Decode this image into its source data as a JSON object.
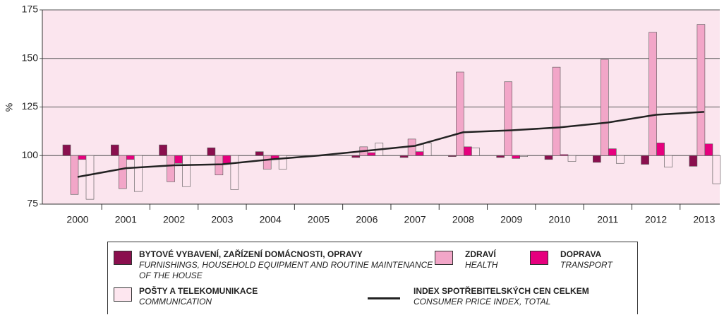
{
  "chart_data": {
    "type": "bar",
    "y_label": "%",
    "categories": [
      "2000",
      "2001",
      "2002",
      "2003",
      "2004",
      "2005",
      "2006",
      "2007",
      "2008",
      "2009",
      "2010",
      "2011",
      "2012",
      "2013"
    ],
    "ylim": [
      75,
      175
    ],
    "yticks": [
      75,
      100,
      125,
      150,
      175
    ],
    "baseline": 100,
    "grid": true,
    "series": [
      {
        "name": "BYTOVÉ VYBAVENÍ, ZAŘÍZENÍ DOMÁCNOSTI, OPRAVY",
        "name_en": "FURNISHINGS, HOUSEHOLD EQUIPMENT AND ROUTINE MAINTENANCE OF THE HOUSE",
        "type": "bar",
        "color": "#8a0f4e",
        "values": [
          105.5,
          105.5,
          105.5,
          104,
          102,
          100,
          99,
          99,
          99.5,
          99,
          98,
          96.5,
          95.5,
          94.5
        ]
      },
      {
        "name": "ZDRAVÍ",
        "name_en": "HEALTH",
        "type": "bar",
        "color": "#f2a6c8",
        "values": [
          80,
          83,
          86.5,
          90,
          93,
          100,
          104.5,
          108.5,
          143,
          138,
          145.5,
          149.5,
          163.5,
          167.5
        ]
      },
      {
        "name": "DOPRAVA",
        "name_en": "TRANSPORT",
        "type": "bar",
        "color": "#e6007e",
        "values": [
          98,
          98,
          96,
          96,
          98,
          100,
          101.5,
          102,
          104.5,
          98.5,
          100.5,
          103.5,
          106.5,
          106
        ]
      },
      {
        "name": "POŠTY A TELEKOMUNIKACE",
        "name_en": "COMMUNICATION",
        "type": "bar",
        "color": "#fde6ef",
        "values": [
          77.5,
          81.5,
          84,
          82.5,
          93,
          100,
          106.5,
          106.5,
          104,
          99.5,
          97,
          96,
          94,
          85.5
        ]
      },
      {
        "name": "INDEX SPOTŘEBITELSKÝCH CEN CELKEM",
        "name_en": "CONSUMER PRICE INDEX, TOTAL",
        "type": "line",
        "color": "#222222",
        "values": [
          89,
          93.5,
          95,
          95.5,
          98,
          100,
          102.5,
          105,
          112,
          113,
          114.5,
          117,
          121,
          122.5
        ]
      }
    ]
  }
}
